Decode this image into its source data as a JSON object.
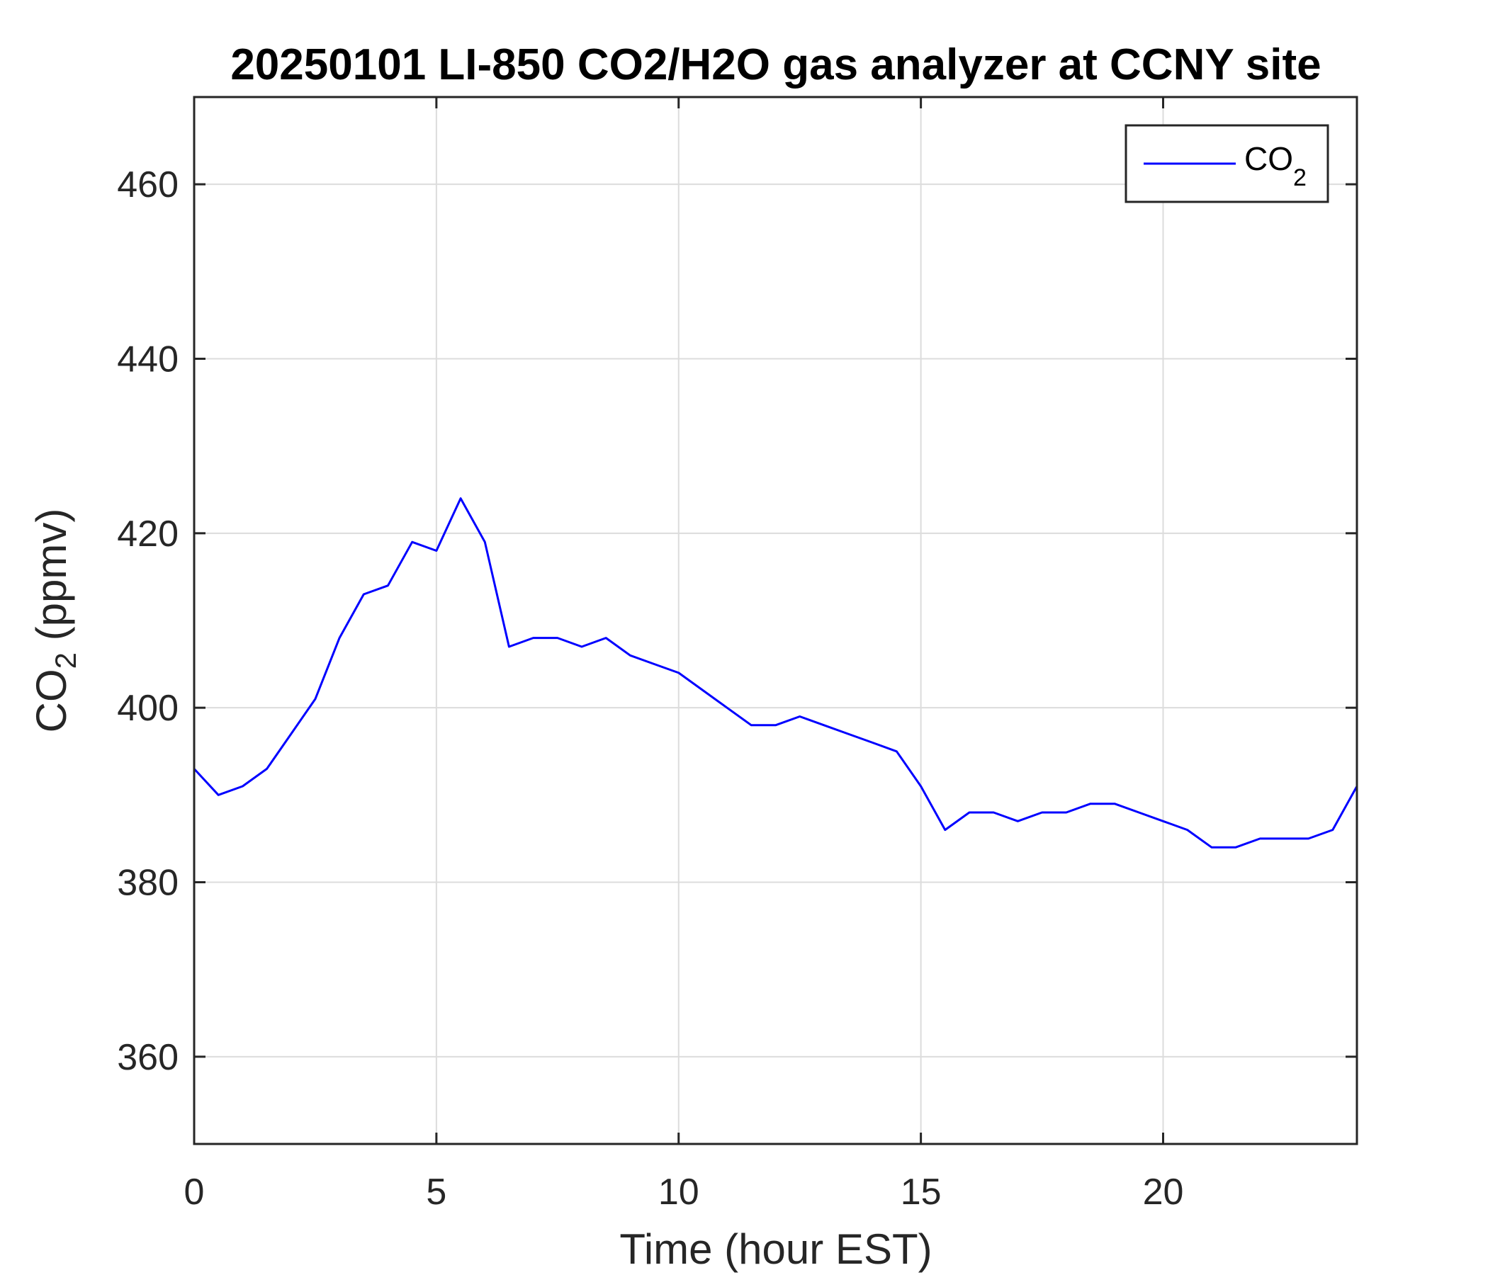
{
  "chart_data": {
    "type": "line",
    "title": "20250101 LI-850 CO2/H2O gas analyzer at CCNY site",
    "xlabel": "Time (hour EST)",
    "ylabel_main": "CO",
    "ylabel_sub": "2",
    "ylabel_rest": " (ppmv)",
    "xlim": [
      0,
      24
    ],
    "ylim": [
      350,
      470
    ],
    "xticks": [
      0,
      5,
      10,
      15,
      20
    ],
    "yticks": [
      360,
      380,
      400,
      420,
      440,
      460
    ],
    "grid": true,
    "legend_position": "top-right",
    "line_color": "#0000ff",
    "series": [
      {
        "name_main": "CO",
        "name_sub": "2",
        "x": [
          0,
          0.5,
          1,
          1.5,
          2,
          2.5,
          3,
          3.5,
          4,
          4.5,
          5,
          5.5,
          6,
          6.5,
          7,
          7.5,
          8,
          8.5,
          9,
          9.5,
          10,
          10.5,
          11,
          11.5,
          12,
          12.5,
          13,
          13.5,
          14,
          14.5,
          15,
          15.5,
          16,
          16.5,
          17,
          17.5,
          18,
          18.5,
          19,
          19.5,
          20,
          20.5,
          21,
          21.5,
          22,
          22.5,
          23,
          23.5,
          24
        ],
        "values": [
          393,
          390,
          391,
          393,
          397,
          401,
          408,
          413,
          414,
          419,
          418,
          424,
          419,
          407,
          408,
          408,
          407,
          408,
          406,
          405,
          404,
          402,
          400,
          398,
          398,
          399,
          398,
          397,
          396,
          395,
          391,
          386,
          388,
          388,
          387,
          388,
          388,
          389,
          389,
          388,
          387,
          386,
          384,
          384,
          385,
          385,
          385,
          386,
          391
        ]
      }
    ]
  }
}
